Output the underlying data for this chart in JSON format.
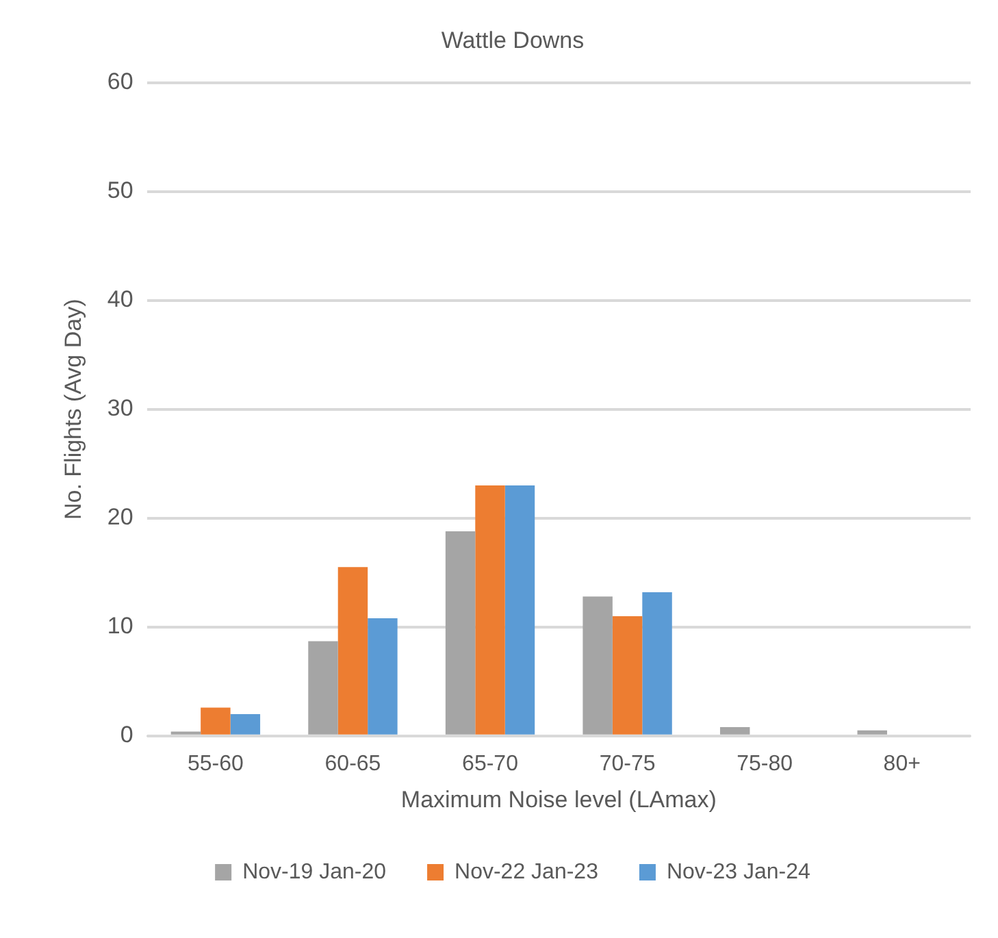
{
  "chart_data": {
    "type": "bar",
    "title": "Wattle Downs",
    "xlabel": "Maximum Noise level (LAmax)",
    "ylabel": "No. Flights (Avg Day)",
    "categories": [
      "55-60",
      "60-65",
      "65-70",
      "70-75",
      "75-80",
      "80+"
    ],
    "series": [
      {
        "name": "Nov-19 Jan-20",
        "color": "#a5a5a5",
        "values": [
          0.4,
          8.7,
          18.8,
          12.8,
          0.8,
          0.5
        ]
      },
      {
        "name": "Nov-22 Jan-23",
        "color": "#ed7d31",
        "values": [
          2.6,
          15.5,
          23,
          11,
          0,
          0
        ]
      },
      {
        "name": "Nov-23 Jan-24",
        "color": "#5b9bd5",
        "values": [
          2,
          10.8,
          23,
          13.2,
          0,
          0
        ]
      }
    ],
    "ylim": [
      0,
      60
    ],
    "yticks": [
      0,
      10,
      20,
      30,
      40,
      50,
      60
    ],
    "grid": "y",
    "legend": "bottom"
  }
}
